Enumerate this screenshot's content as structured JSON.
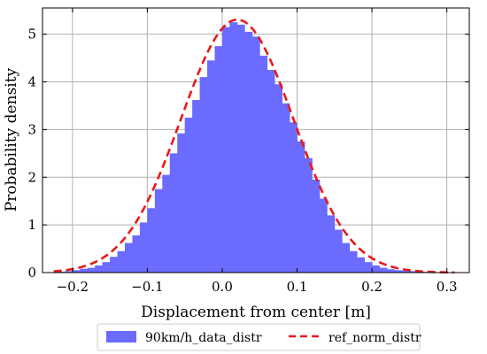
{
  "chart_data": {
    "type": "bar",
    "title": "",
    "xlabel": "Displacement from center [m]",
    "ylabel": "Probability density",
    "xlim": [
      -0.24,
      0.33
    ],
    "ylim": [
      0,
      5.55
    ],
    "grid": true,
    "legend_placement": "bottom-center (below axes)",
    "x_ticks": [
      -0.2,
      -0.1,
      0.0,
      0.1,
      0.2,
      0.3
    ],
    "x_tick_labels": [
      "−0.2",
      "−0.1",
      "0.0",
      "0.1",
      "0.2",
      "0.3"
    ],
    "y_ticks": [
      0,
      1,
      2,
      3,
      4,
      5
    ],
    "y_tick_labels": [
      "0",
      "1",
      "2",
      "3",
      "4",
      "5"
    ],
    "series": [
      {
        "name": "90km/h_data_distr",
        "kind": "histogram",
        "color": "#6b6bff",
        "bins": [
          [
            -0.22,
            -0.21,
            0.02
          ],
          [
            -0.21,
            -0.2,
            0.03
          ],
          [
            -0.2,
            -0.19,
            0.05
          ],
          [
            -0.19,
            -0.18,
            0.08
          ],
          [
            -0.18,
            -0.17,
            0.1
          ],
          [
            -0.17,
            -0.16,
            0.15
          ],
          [
            -0.16,
            -0.15,
            0.22
          ],
          [
            -0.15,
            -0.14,
            0.33
          ],
          [
            -0.14,
            -0.13,
            0.45
          ],
          [
            -0.13,
            -0.12,
            0.62
          ],
          [
            -0.12,
            -0.11,
            0.78
          ],
          [
            -0.11,
            -0.1,
            1.05
          ],
          [
            -0.1,
            -0.09,
            1.35
          ],
          [
            -0.09,
            -0.08,
            1.75
          ],
          [
            -0.08,
            -0.07,
            2.05
          ],
          [
            -0.07,
            -0.06,
            2.5
          ],
          [
            -0.06,
            -0.05,
            2.92
          ],
          [
            -0.05,
            -0.04,
            3.25
          ],
          [
            -0.04,
            -0.03,
            3.62
          ],
          [
            -0.03,
            -0.02,
            4.1
          ],
          [
            -0.02,
            -0.01,
            4.45
          ],
          [
            -0.01,
            0.0,
            4.75
          ],
          [
            0.0,
            0.01,
            5.15
          ],
          [
            0.01,
            0.02,
            5.25
          ],
          [
            0.02,
            0.03,
            5.2
          ],
          [
            0.03,
            0.04,
            5.05
          ],
          [
            0.04,
            0.05,
            4.95
          ],
          [
            0.05,
            0.06,
            4.55
          ],
          [
            0.06,
            0.07,
            4.25
          ],
          [
            0.07,
            0.08,
            3.95
          ],
          [
            0.08,
            0.09,
            3.55
          ],
          [
            0.09,
            0.1,
            3.15
          ],
          [
            0.1,
            0.11,
            2.75
          ],
          [
            0.11,
            0.12,
            2.4
          ],
          [
            0.12,
            0.13,
            1.95
          ],
          [
            0.13,
            0.14,
            1.55
          ],
          [
            0.14,
            0.15,
            1.2
          ],
          [
            0.15,
            0.16,
            0.9
          ],
          [
            0.16,
            0.17,
            0.62
          ],
          [
            0.17,
            0.18,
            0.45
          ],
          [
            0.18,
            0.19,
            0.32
          ],
          [
            0.19,
            0.2,
            0.22
          ],
          [
            0.2,
            0.21,
            0.15
          ],
          [
            0.21,
            0.22,
            0.1
          ],
          [
            0.22,
            0.23,
            0.07
          ],
          [
            0.23,
            0.24,
            0.05
          ],
          [
            0.24,
            0.25,
            0.04
          ],
          [
            0.25,
            0.26,
            0.03
          ],
          [
            0.26,
            0.27,
            0.02
          ],
          [
            0.27,
            0.28,
            0.015
          ],
          [
            0.28,
            0.29,
            0.01
          ],
          [
            0.29,
            0.3,
            0.008
          ],
          [
            0.3,
            0.31,
            0.005
          ]
        ]
      },
      {
        "name": "ref_norm_distr",
        "kind": "normal_pdf",
        "color": "#e8191c",
        "line_style": "dashed",
        "mean": 0.02,
        "std": 0.0752,
        "x_range": [
          -0.225,
          0.31
        ]
      }
    ]
  }
}
